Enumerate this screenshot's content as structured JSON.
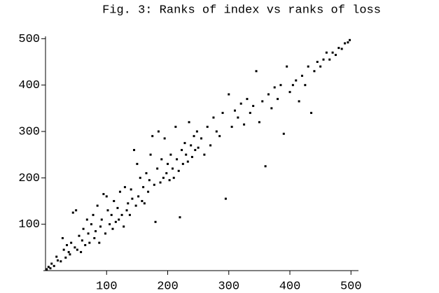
{
  "chart_data": {
    "type": "scatter",
    "title": "Fig. 3: Ranks of index vs ranks of loss",
    "color": "#000000",
    "x": [
      2,
      5,
      8,
      10,
      14,
      18,
      20,
      25,
      28,
      30,
      33,
      35,
      38,
      40,
      42,
      45,
      48,
      50,
      52,
      55,
      58,
      60,
      62,
      65,
      68,
      70,
      72,
      75,
      78,
      80,
      82,
      85,
      88,
      90,
      92,
      95,
      98,
      100,
      102,
      105,
      108,
      110,
      112,
      115,
      118,
      120,
      122,
      125,
      128,
      130,
      133,
      135,
      138,
      140,
      142,
      145,
      148,
      150,
      152,
      155,
      158,
      160,
      162,
      165,
      168,
      170,
      172,
      175,
      178,
      180,
      183,
      185,
      188,
      190,
      193,
      195,
      198,
      200,
      203,
      205,
      208,
      210,
      213,
      215,
      218,
      220,
      223,
      225,
      228,
      230,
      233,
      235,
      238,
      240,
      243,
      245,
      248,
      250,
      255,
      260,
      265,
      270,
      275,
      280,
      285,
      290,
      295,
      300,
      305,
      310,
      315,
      320,
      325,
      330,
      335,
      340,
      345,
      350,
      355,
      360,
      365,
      370,
      375,
      380,
      385,
      390,
      395,
      400,
      405,
      410,
      415,
      420,
      425,
      430,
      435,
      440,
      445,
      450,
      455,
      460,
      465,
      470,
      475,
      480,
      485,
      490,
      495,
      498
    ],
    "values": [
      3,
      8,
      5,
      15,
      10,
      30,
      22,
      20,
      70,
      45,
      28,
      55,
      40,
      35,
      60,
      125,
      50,
      130,
      45,
      75,
      40,
      65,
      90,
      55,
      110,
      80,
      60,
      100,
      120,
      70,
      85,
      140,
      60,
      95,
      110,
      165,
      80,
      160,
      130,
      100,
      120,
      90,
      150,
      105,
      135,
      110,
      170,
      120,
      95,
      180,
      130,
      145,
      120,
      175,
      155,
      260,
      140,
      230,
      160,
      200,
      150,
      180,
      145,
      210,
      170,
      195,
      250,
      290,
      185,
      105,
      220,
      300,
      190,
      240,
      200,
      285,
      210,
      230,
      195,
      250,
      220,
      200,
      310,
      240,
      215,
      115,
      260,
      230,
      275,
      250,
      235,
      320,
      270,
      245,
      290,
      260,
      300,
      265,
      285,
      250,
      310,
      270,
      330,
      300,
      290,
      340,
      155,
      380,
      310,
      345,
      330,
      360,
      315,
      370,
      340,
      355,
      430,
      320,
      365,
      225,
      380,
      350,
      395,
      370,
      400,
      295,
      440,
      385,
      400,
      410,
      365,
      420,
      400,
      440,
      340,
      430,
      450,
      440,
      455,
      470,
      455,
      470,
      465,
      480,
      478,
      490,
      492,
      497
    ],
    "xlim": [
      0,
      510
    ],
    "ylim": [
      0,
      505
    ],
    "xticks": [
      100,
      200,
      300,
      400,
      500
    ],
    "yticks": [
      100,
      200,
      300,
      400,
      500
    ]
  }
}
